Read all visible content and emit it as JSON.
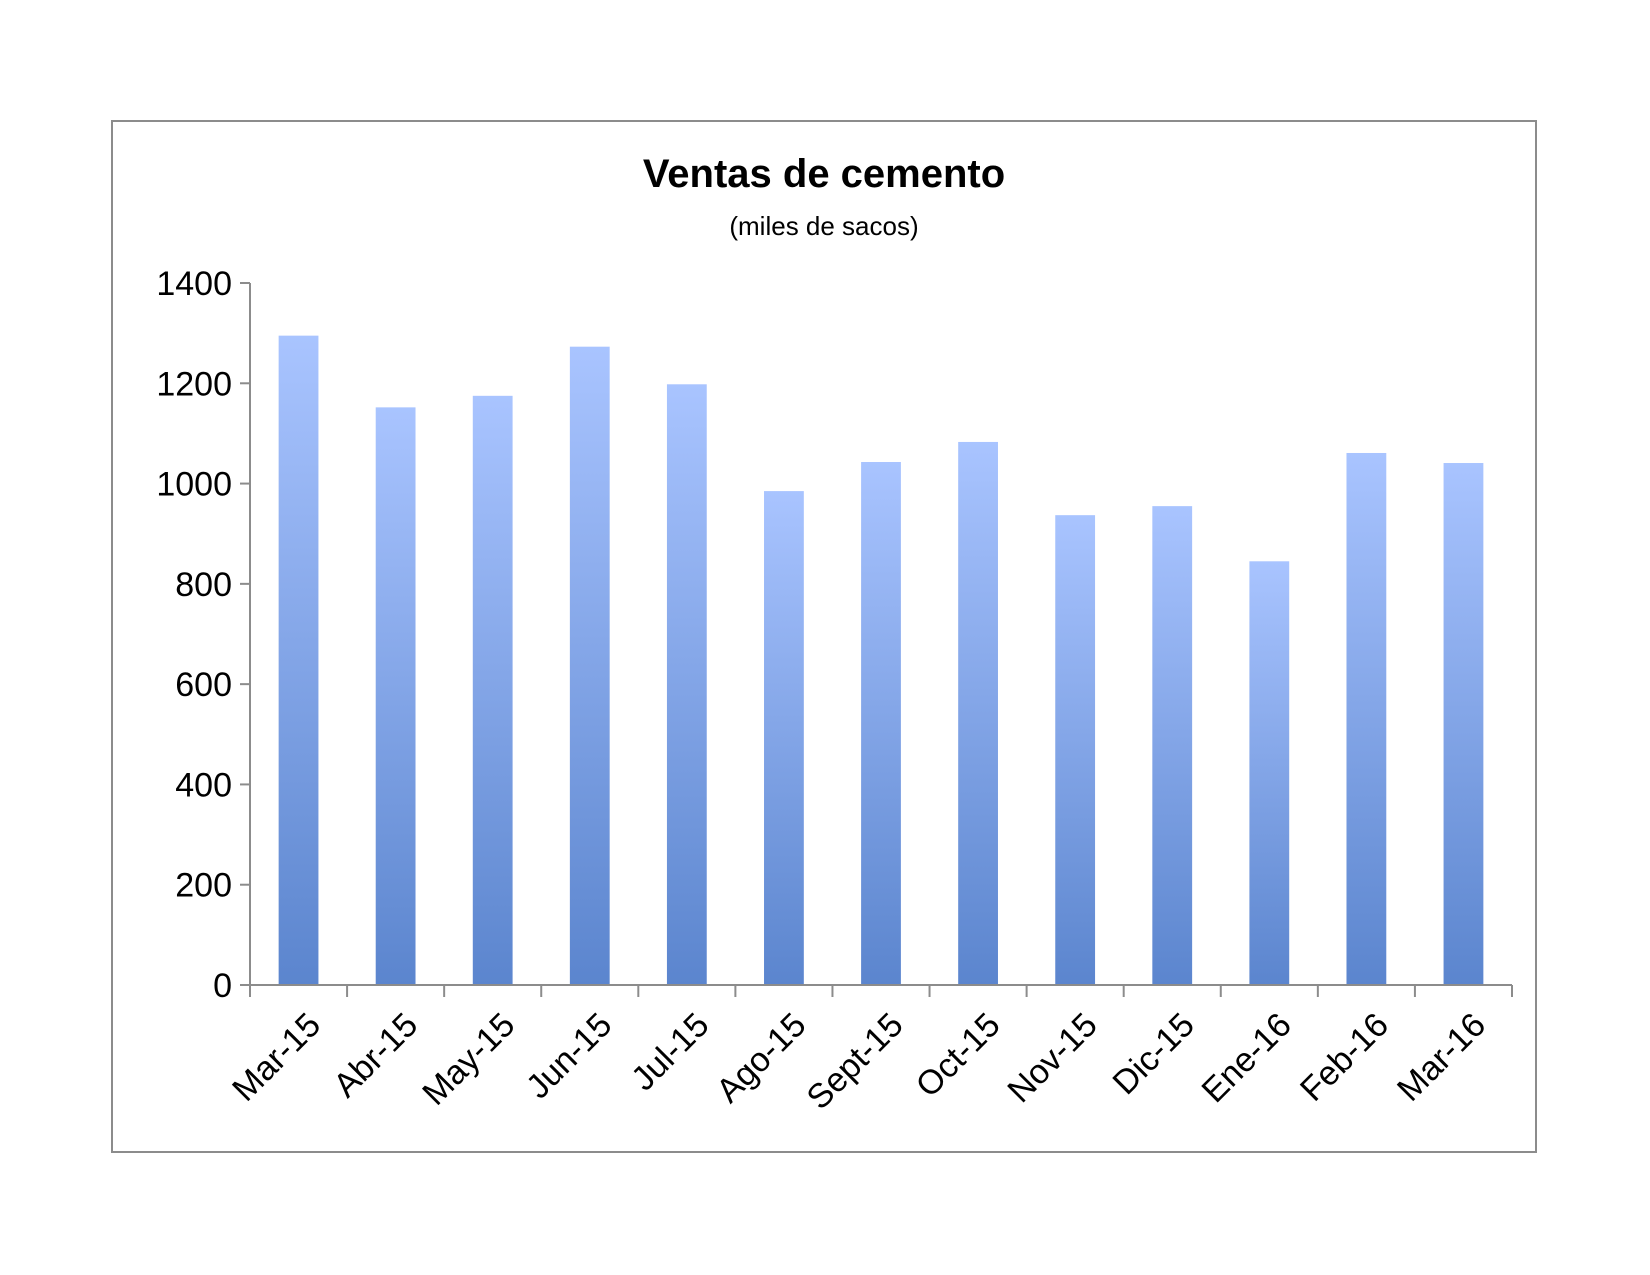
{
  "chart_data": {
    "type": "bar",
    "title": "Ventas de cemento",
    "subtitle": "(miles de sacos)",
    "xlabel": "",
    "ylabel": "",
    "categories": [
      "Mar-15",
      "Abr-15",
      "May-15",
      "Jun-15",
      "Jul-15",
      "Ago-15",
      "Sept-15",
      "Oct-15",
      "Nov-15",
      "Dic-15",
      "Ene-16",
      "Feb-16",
      "Mar-16"
    ],
    "values": [
      1295,
      1152,
      1175,
      1273,
      1198,
      985,
      1043,
      1083,
      937,
      955,
      845,
      1061,
      1041
    ],
    "ylim": [
      0,
      1400
    ],
    "yticks": [
      0,
      200,
      400,
      600,
      800,
      1000,
      1200,
      1400
    ],
    "grid": false,
    "legend": "none",
    "colors": {
      "bar_top": "#A9C4FF",
      "bar_bottom": "#5B85CE",
      "axis": "#8C8C8C",
      "frame": "#8C8C8C"
    }
  }
}
